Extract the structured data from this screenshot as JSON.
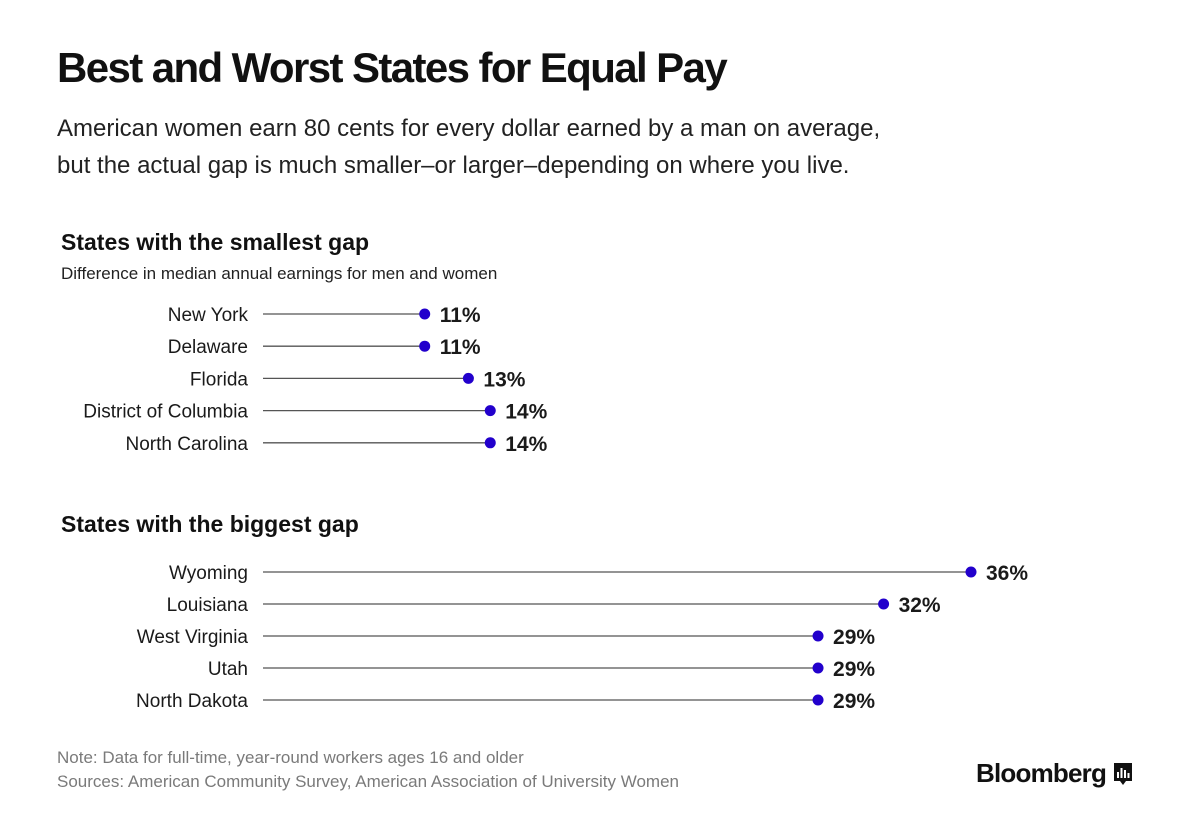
{
  "header": {
    "title": "Best and Worst States for Equal Pay",
    "subtitle_lines": [
      "American women earn 80 cents for every dollar earned by a man on average,",
      "but the actual gap is much smaller–or larger–depending on where you live."
    ]
  },
  "chart_data": [
    {
      "type": "dot",
      "title": "States with the smallest gap",
      "subtitle": "Difference in median annual earnings for men and women",
      "categories": [
        "New York",
        "Delaware",
        "Florida",
        "District of Columbia",
        "North Carolina"
      ],
      "values": [
        11,
        11,
        13,
        14,
        14
      ],
      "labels": [
        "11%",
        "11%",
        "13%",
        "14%",
        "14%"
      ],
      "unit": "%",
      "xlim": [
        3.6,
        36
      ]
    },
    {
      "type": "dot",
      "title": "States with the biggest gap",
      "categories": [
        "Wyoming",
        "Louisiana",
        "West Virginia",
        "Utah",
        "North Dakota"
      ],
      "values": [
        36,
        32,
        29,
        29,
        29
      ],
      "labels": [
        "36%",
        "32%",
        "29%",
        "29%",
        "29%"
      ],
      "unit": "%",
      "xlim": [
        3.6,
        36
      ]
    }
  ],
  "footer": {
    "note": "Note: Data for full-time, year-round workers ages 16 and older",
    "sources": "Sources: American Community Survey, American Association of University Women"
  },
  "brand": {
    "name": "Bloomberg",
    "icon": "bar-chart-icon"
  },
  "colors": {
    "dot": "#2200cc",
    "line": "#555555",
    "text": "#1a1a1a",
    "muted": "#7a7a7a"
  }
}
